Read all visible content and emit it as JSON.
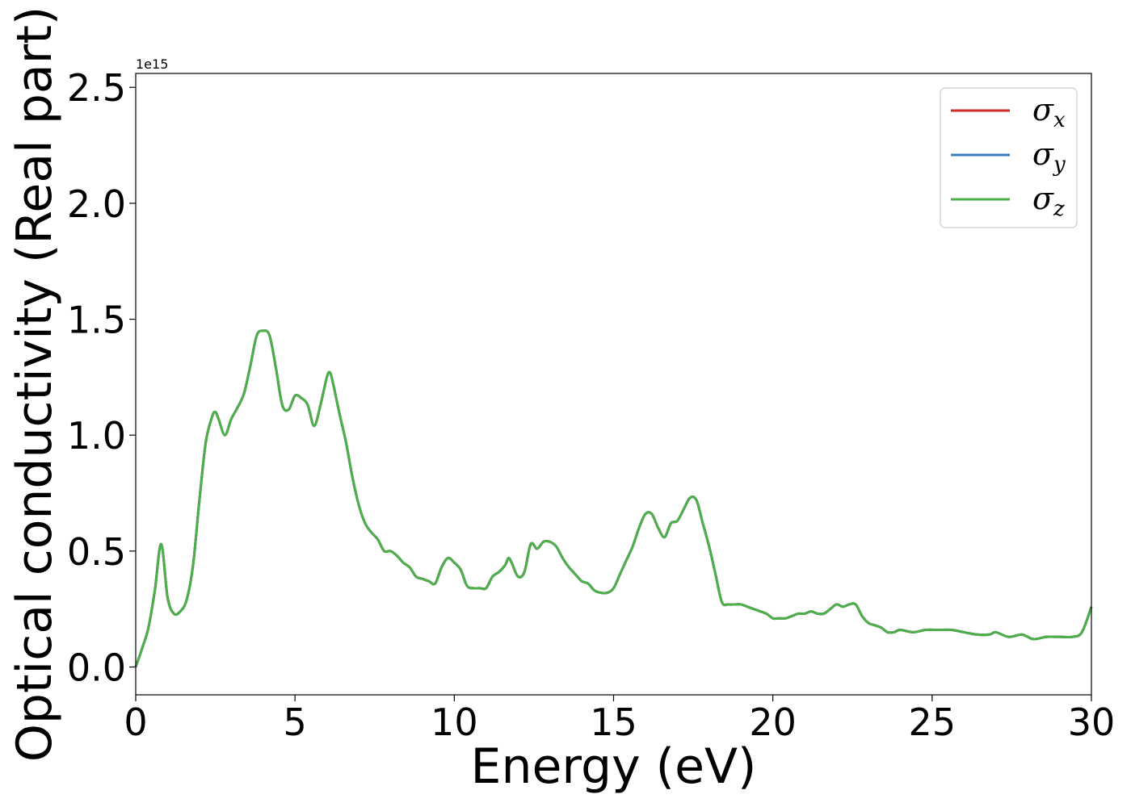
{
  "chart_data": {
    "type": "line",
    "xlabel": "Energy (eV)",
    "ylabel": "Optical conductivity (Real part)",
    "y_offset_text": "1e15",
    "xlim": [
      0,
      30
    ],
    "ylim": [
      -0.12,
      2.56
    ],
    "y_scale_factor": 1000000000000000.0,
    "xticks": [
      0,
      5,
      10,
      15,
      20,
      25,
      30
    ],
    "xtick_labels": [
      "0",
      "5",
      "10",
      "15",
      "20",
      "25",
      "30"
    ],
    "yticks": [
      0.0,
      0.5,
      1.0,
      1.5,
      2.0,
      2.5
    ],
    "ytick_labels": [
      "0.0",
      "0.5",
      "1.0",
      "1.5",
      "2.0",
      "2.5"
    ],
    "grid": false,
    "legend_position": "upper right",
    "legend": [
      {
        "symbol": "σ",
        "sub": "x",
        "color": "#d62728"
      },
      {
        "symbol": "σ",
        "sub": "y",
        "color": "#377eb8"
      },
      {
        "symbol": "σ",
        "sub": "z",
        "color": "#4daf4a"
      }
    ],
    "x": [
      0,
      0.2,
      0.4,
      0.6,
      0.8,
      1.0,
      1.2,
      1.4,
      1.6,
      1.8,
      2.0,
      2.2,
      2.4,
      2.5,
      2.6,
      2.8,
      3.0,
      3.2,
      3.4,
      3.6,
      3.8,
      4.0,
      4.2,
      4.4,
      4.6,
      4.8,
      5.0,
      5.2,
      5.4,
      5.6,
      5.8,
      6.0,
      6.1,
      6.2,
      6.4,
      6.6,
      6.8,
      7.0,
      7.2,
      7.4,
      7.6,
      7.8,
      8.0,
      8.2,
      8.4,
      8.6,
      8.8,
      9.0,
      9.2,
      9.4,
      9.6,
      9.8,
      10.0,
      10.2,
      10.4,
      10.6,
      10.8,
      11.0,
      11.2,
      11.4,
      11.6,
      11.7,
      11.8,
      12.0,
      12.2,
      12.4,
      12.6,
      12.8,
      13.0,
      13.2,
      13.4,
      13.6,
      13.8,
      14.0,
      14.2,
      14.4,
      14.6,
      14.8,
      15.0,
      15.2,
      15.4,
      15.6,
      15.8,
      16.0,
      16.2,
      16.4,
      16.6,
      16.8,
      17.0,
      17.2,
      17.4,
      17.6,
      17.8,
      18.0,
      18.2,
      18.4,
      18.6,
      18.8,
      19.0,
      19.2,
      19.4,
      19.6,
      19.8,
      20.0,
      20.2,
      20.4,
      20.6,
      20.8,
      21.0,
      21.2,
      21.4,
      21.6,
      21.8,
      22.0,
      22.2,
      22.4,
      22.6,
      22.8,
      23.0,
      23.2,
      23.4,
      23.6,
      23.8,
      24.0,
      24.4,
      24.8,
      25.2,
      25.6,
      26.0,
      26.4,
      26.8,
      27.0,
      27.4,
      27.8,
      28.0,
      28.2,
      28.6,
      29.0,
      29.4,
      29.7,
      30.0
    ],
    "series": [
      {
        "name": "σx",
        "color": "#d62728",
        "values": [
          0.0,
          0.08,
          0.17,
          0.33,
          0.53,
          0.3,
          0.23,
          0.24,
          0.29,
          0.44,
          0.72,
          0.97,
          1.08,
          1.1,
          1.07,
          1.0,
          1.07,
          1.12,
          1.18,
          1.3,
          1.43,
          1.45,
          1.43,
          1.29,
          1.13,
          1.11,
          1.17,
          1.16,
          1.13,
          1.04,
          1.13,
          1.25,
          1.27,
          1.22,
          1.09,
          0.97,
          0.82,
          0.7,
          0.62,
          0.58,
          0.55,
          0.5,
          0.5,
          0.48,
          0.45,
          0.43,
          0.39,
          0.38,
          0.37,
          0.36,
          0.43,
          0.47,
          0.45,
          0.42,
          0.35,
          0.34,
          0.34,
          0.34,
          0.39,
          0.41,
          0.44,
          0.47,
          0.45,
          0.39,
          0.41,
          0.53,
          0.51,
          0.54,
          0.54,
          0.52,
          0.47,
          0.43,
          0.4,
          0.37,
          0.36,
          0.33,
          0.32,
          0.32,
          0.34,
          0.4,
          0.46,
          0.52,
          0.6,
          0.66,
          0.66,
          0.6,
          0.56,
          0.62,
          0.63,
          0.68,
          0.73,
          0.72,
          0.62,
          0.52,
          0.4,
          0.28,
          0.27,
          0.27,
          0.27,
          0.26,
          0.25,
          0.24,
          0.23,
          0.21,
          0.21,
          0.21,
          0.22,
          0.23,
          0.23,
          0.24,
          0.23,
          0.23,
          0.25,
          0.27,
          0.26,
          0.27,
          0.27,
          0.22,
          0.19,
          0.18,
          0.17,
          0.15,
          0.15,
          0.16,
          0.15,
          0.16,
          0.16,
          0.16,
          0.15,
          0.14,
          0.14,
          0.15,
          0.13,
          0.14,
          0.13,
          0.12,
          0.13,
          0.13,
          0.13,
          0.15,
          0.26
        ]
      },
      {
        "name": "σy",
        "color": "#377eb8",
        "values": [
          0.0,
          0.08,
          0.17,
          0.33,
          0.53,
          0.3,
          0.23,
          0.24,
          0.29,
          0.44,
          0.72,
          0.97,
          1.08,
          1.1,
          1.07,
          1.0,
          1.07,
          1.12,
          1.18,
          1.3,
          1.43,
          1.45,
          1.43,
          1.29,
          1.13,
          1.11,
          1.17,
          1.16,
          1.13,
          1.04,
          1.13,
          1.25,
          1.27,
          1.22,
          1.09,
          0.97,
          0.82,
          0.7,
          0.62,
          0.58,
          0.55,
          0.5,
          0.5,
          0.48,
          0.45,
          0.43,
          0.39,
          0.38,
          0.37,
          0.36,
          0.43,
          0.47,
          0.45,
          0.42,
          0.35,
          0.34,
          0.34,
          0.34,
          0.39,
          0.41,
          0.44,
          0.47,
          0.45,
          0.39,
          0.41,
          0.53,
          0.51,
          0.54,
          0.54,
          0.52,
          0.47,
          0.43,
          0.4,
          0.37,
          0.36,
          0.33,
          0.32,
          0.32,
          0.34,
          0.4,
          0.46,
          0.52,
          0.6,
          0.66,
          0.66,
          0.6,
          0.56,
          0.62,
          0.63,
          0.68,
          0.73,
          0.72,
          0.62,
          0.52,
          0.4,
          0.28,
          0.27,
          0.27,
          0.27,
          0.26,
          0.25,
          0.24,
          0.23,
          0.21,
          0.21,
          0.21,
          0.22,
          0.23,
          0.23,
          0.24,
          0.23,
          0.23,
          0.25,
          0.27,
          0.26,
          0.27,
          0.27,
          0.22,
          0.19,
          0.18,
          0.17,
          0.15,
          0.15,
          0.16,
          0.15,
          0.16,
          0.16,
          0.16,
          0.15,
          0.14,
          0.14,
          0.15,
          0.13,
          0.14,
          0.13,
          0.12,
          0.13,
          0.13,
          0.13,
          0.15,
          0.26
        ]
      },
      {
        "name": "σz",
        "color": "#4daf4a",
        "values": [
          0.0,
          0.08,
          0.17,
          0.33,
          0.53,
          0.3,
          0.23,
          0.24,
          0.29,
          0.44,
          0.72,
          0.97,
          1.08,
          1.1,
          1.07,
          1.0,
          1.07,
          1.12,
          1.18,
          1.3,
          1.43,
          1.45,
          1.43,
          1.29,
          1.13,
          1.11,
          1.17,
          1.16,
          1.13,
          1.04,
          1.13,
          1.25,
          1.27,
          1.22,
          1.09,
          0.97,
          0.82,
          0.7,
          0.62,
          0.58,
          0.55,
          0.5,
          0.5,
          0.48,
          0.45,
          0.43,
          0.39,
          0.38,
          0.37,
          0.36,
          0.43,
          0.47,
          0.45,
          0.42,
          0.35,
          0.34,
          0.34,
          0.34,
          0.39,
          0.41,
          0.44,
          0.47,
          0.45,
          0.39,
          0.41,
          0.53,
          0.51,
          0.54,
          0.54,
          0.52,
          0.47,
          0.43,
          0.4,
          0.37,
          0.36,
          0.33,
          0.32,
          0.32,
          0.34,
          0.4,
          0.46,
          0.52,
          0.6,
          0.66,
          0.66,
          0.6,
          0.56,
          0.62,
          0.63,
          0.68,
          0.73,
          0.72,
          0.62,
          0.52,
          0.4,
          0.28,
          0.27,
          0.27,
          0.27,
          0.26,
          0.25,
          0.24,
          0.23,
          0.21,
          0.21,
          0.21,
          0.22,
          0.23,
          0.23,
          0.24,
          0.23,
          0.23,
          0.25,
          0.27,
          0.26,
          0.27,
          0.27,
          0.22,
          0.19,
          0.18,
          0.17,
          0.15,
          0.15,
          0.16,
          0.15,
          0.16,
          0.16,
          0.16,
          0.15,
          0.14,
          0.14,
          0.15,
          0.13,
          0.14,
          0.13,
          0.12,
          0.13,
          0.13,
          0.13,
          0.15,
          0.26
        ]
      }
    ]
  }
}
